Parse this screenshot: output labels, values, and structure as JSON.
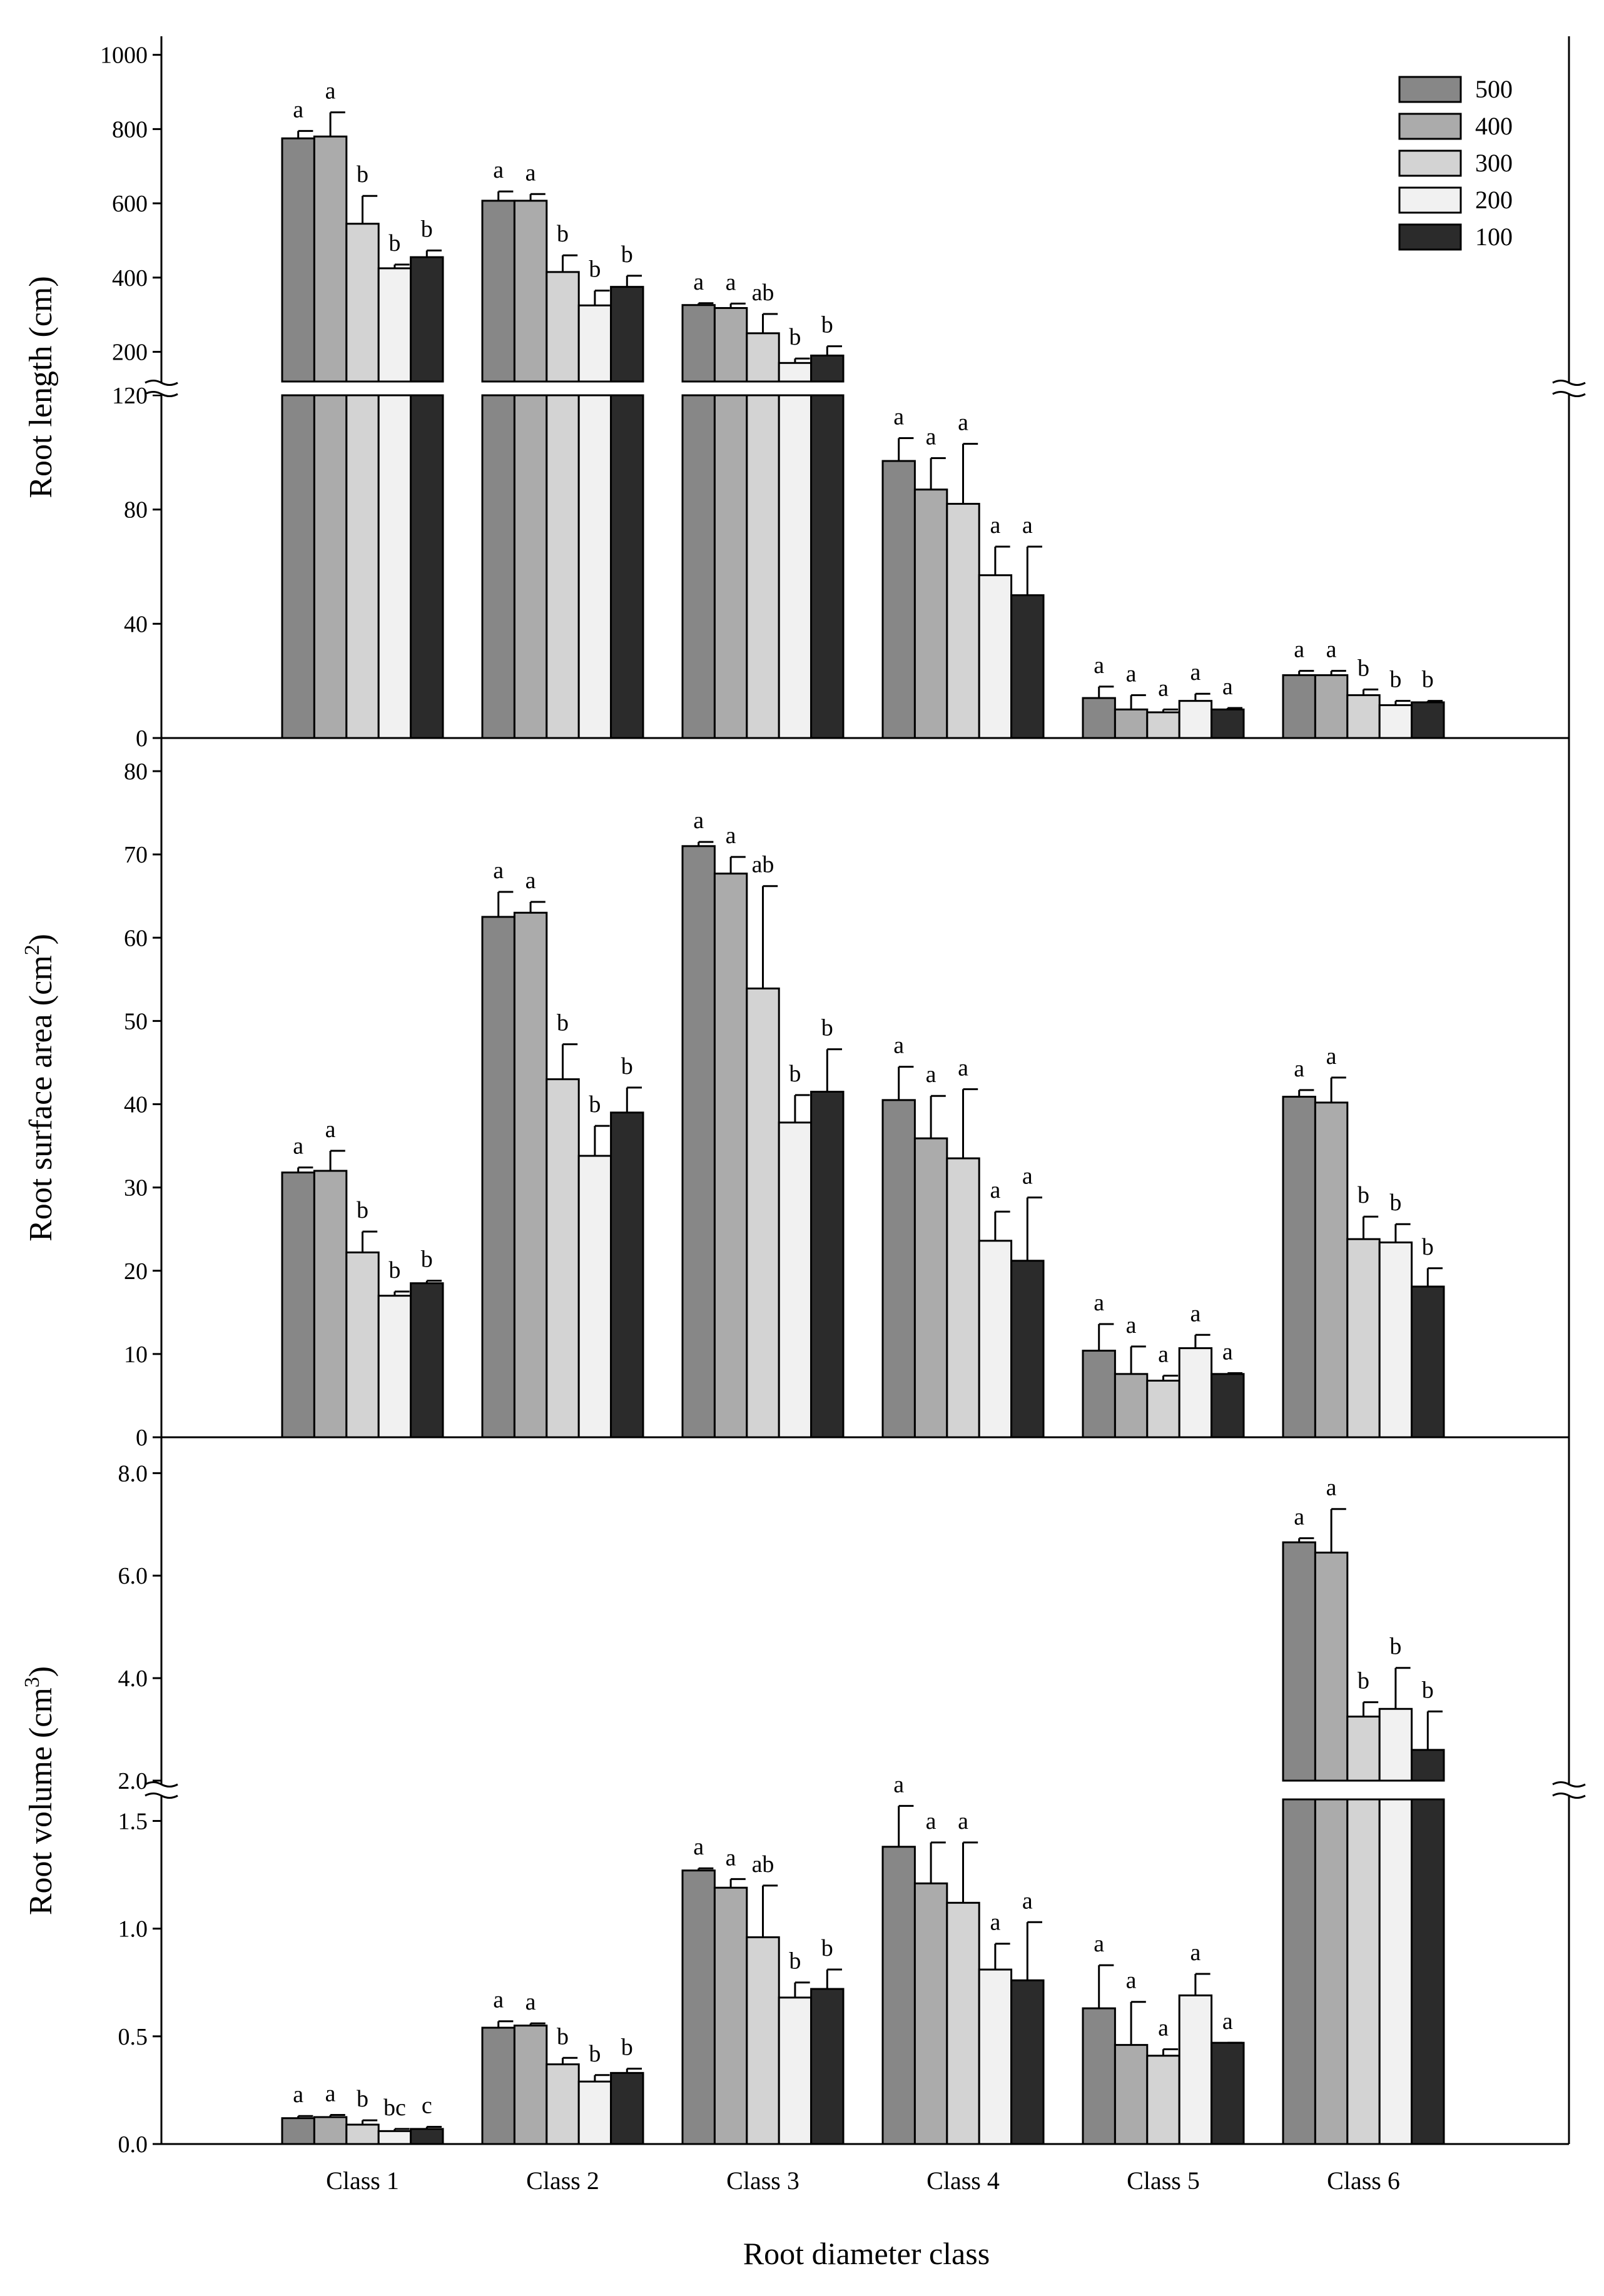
{
  "figure": {
    "xlabel": "Root diameter class"
  },
  "legend": [
    {
      "label": "500",
      "color": "#878787"
    },
    {
      "label": "400",
      "color": "#ababab"
    },
    {
      "label": "300",
      "color": "#d3d3d3"
    },
    {
      "label": "200",
      "color": "#f1f1f1"
    },
    {
      "label": "100",
      "color": "#2b2b2b"
    }
  ],
  "chart_data": [
    {
      "type": "bar",
      "ylabel": "Root length (cm)",
      "categories": [
        "Class 1",
        "Class 2",
        "Class 3",
        "Class 4",
        "Class 5",
        "Class 6"
      ],
      "broken_axis": {
        "lower": {
          "ylim": [
            0,
            120
          ],
          "ticks": [
            0,
            40,
            80,
            120
          ]
        },
        "upper": {
          "ylim": [
            120,
            1050
          ],
          "ticks": [
            200,
            400,
            600,
            800,
            1000
          ]
        }
      },
      "series": [
        {
          "name": "500",
          "values": [
            775,
            607,
            326,
            97,
            14,
            22
          ],
          "errors": [
            20,
            25,
            5,
            8,
            4,
            1.5
          ],
          "letters": [
            "a",
            "a",
            "a",
            "a",
            "a",
            "a"
          ]
        },
        {
          "name": "400",
          "values": [
            780,
            607,
            318,
            87,
            10,
            22
          ],
          "errors": [
            65,
            18,
            12,
            11,
            5,
            1.5
          ],
          "letters": [
            "a",
            "a",
            "a",
            "a",
            "a",
            "a"
          ]
        },
        {
          "name": "300",
          "values": [
            545,
            415,
            250,
            82,
            9,
            15
          ],
          "errors": [
            75,
            45,
            52,
            21,
            1,
            2
          ],
          "letters": [
            "b",
            "b",
            "ab",
            "a",
            "a",
            "b"
          ]
        },
        {
          "name": "200",
          "values": [
            425,
            325,
            170,
            57,
            13,
            11.5
          ],
          "errors": [
            10,
            40,
            12,
            10,
            2.5,
            1.5
          ],
          "letters": [
            "b",
            "b",
            "b",
            "a",
            "a",
            "b"
          ]
        },
        {
          "name": "100",
          "values": [
            455,
            375,
            190,
            50,
            10,
            12.5
          ],
          "errors": [
            18,
            30,
            25,
            17,
            0.5,
            0.5
          ],
          "letters": [
            "b",
            "b",
            "b",
            "a",
            "a",
            "b"
          ]
        }
      ]
    },
    {
      "type": "bar",
      "ylabel": "Root surface area (cm2)",
      "categories": [
        "Class 1",
        "Class 2",
        "Class 3",
        "Class 4",
        "Class 5",
        "Class 6"
      ],
      "ylim": [
        0,
        80
      ],
      "ticks": [
        0,
        10,
        20,
        30,
        40,
        50,
        60,
        70,
        80
      ],
      "series": [
        {
          "name": "500",
          "values": [
            31.8,
            62.5,
            71.0,
            40.5,
            10.4,
            40.9
          ],
          "errors": [
            0.6,
            3.0,
            0.5,
            4.0,
            3.2,
            0.8
          ],
          "letters": [
            "a",
            "a",
            "a",
            "a",
            "a",
            "a"
          ]
        },
        {
          "name": "400",
          "values": [
            32.0,
            63.0,
            67.7,
            35.9,
            7.6,
            40.2
          ],
          "errors": [
            2.4,
            1.3,
            2.0,
            5.1,
            3.3,
            3.0
          ],
          "letters": [
            "a",
            "a",
            "a",
            "a",
            "a",
            "a"
          ]
        },
        {
          "name": "300",
          "values": [
            22.2,
            43.0,
            53.9,
            33.5,
            6.8,
            23.8
          ],
          "errors": [
            2.5,
            4.2,
            12.3,
            8.3,
            0.6,
            2.7
          ],
          "letters": [
            "b",
            "b",
            "ab",
            "a",
            "a",
            "b"
          ]
        },
        {
          "name": "200",
          "values": [
            17.0,
            33.8,
            37.8,
            23.6,
            10.7,
            23.4
          ],
          "errors": [
            0.5,
            3.6,
            3.3,
            3.5,
            1.6,
            2.2
          ],
          "letters": [
            "b",
            "b",
            "b",
            "a",
            "a",
            "b"
          ]
        },
        {
          "name": "100",
          "values": [
            18.5,
            39.0,
            41.5,
            21.2,
            7.6,
            18.1
          ],
          "errors": [
            0.3,
            3.0,
            5.1,
            7.6,
            0.1,
            2.2
          ],
          "letters": [
            "b",
            "b",
            "b",
            "a",
            "a",
            "b"
          ]
        }
      ]
    },
    {
      "type": "bar",
      "ylabel": "Root volume (cm3)",
      "xlabel": "Root diameter class",
      "categories": [
        "Class 1",
        "Class 2",
        "Class 3",
        "Class 4",
        "Class 5",
        "Class 6"
      ],
      "broken_axis": {
        "lower": {
          "ylim": [
            0,
            1.6
          ],
          "ticks": [
            "0.0",
            "0.5",
            "1.0",
            "1.5"
          ]
        },
        "upper": {
          "ylim": [
            2.0,
            8.7
          ],
          "ticks": [
            "2.0",
            "4.0",
            "6.0",
            "8.0"
          ]
        }
      },
      "series": [
        {
          "name": "500",
          "values": [
            0.12,
            0.54,
            1.27,
            1.38,
            0.63,
            6.65
          ],
          "errors": [
            0.01,
            0.03,
            0.01,
            0.19,
            0.2,
            0.08
          ],
          "letters": [
            "a",
            "a",
            "a",
            "a",
            "a",
            "a"
          ]
        },
        {
          "name": "400",
          "values": [
            0.125,
            0.55,
            1.19,
            1.21,
            0.46,
            6.45
          ],
          "errors": [
            0.01,
            0.01,
            0.04,
            0.19,
            0.2,
            0.85
          ],
          "letters": [
            "a",
            "a",
            "a",
            "a",
            "a",
            "a"
          ]
        },
        {
          "name": "300",
          "values": [
            0.09,
            0.37,
            0.96,
            1.12,
            0.41,
            3.25
          ],
          "errors": [
            0.02,
            0.03,
            0.24,
            0.28,
            0.03,
            0.28
          ],
          "letters": [
            "b",
            "b",
            "ab",
            "a",
            "a",
            "b"
          ]
        },
        {
          "name": "200",
          "values": [
            0.06,
            0.29,
            0.68,
            0.81,
            0.69,
            3.4
          ],
          "errors": [
            0.01,
            0.03,
            0.07,
            0.12,
            0.1,
            0.8
          ],
          "letters": [
            "bc",
            "b",
            "b",
            "a",
            "a",
            "b"
          ]
        },
        {
          "name": "100",
          "values": [
            0.07,
            0.33,
            0.72,
            0.76,
            0.47,
            2.6
          ],
          "errors": [
            0.01,
            0.02,
            0.09,
            0.27,
            0.0,
            0.75
          ],
          "letters": [
            "c",
            "b",
            "b",
            "a",
            "a",
            "b"
          ]
        }
      ]
    }
  ]
}
